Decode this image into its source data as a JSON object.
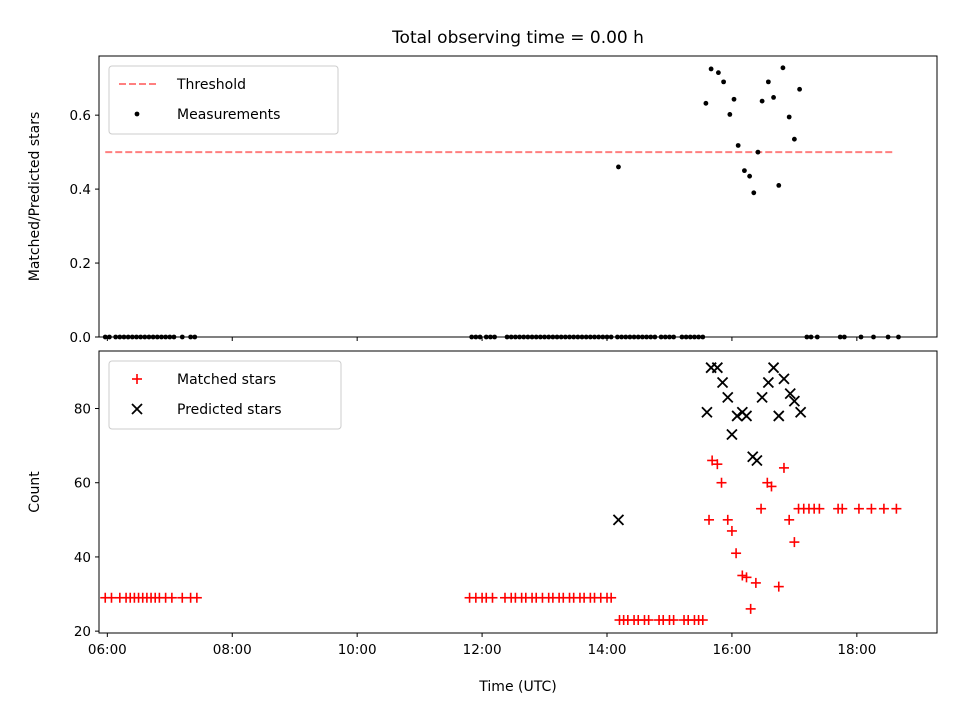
{
  "figure": {
    "title": "Total observing time = 0.00 h"
  },
  "chart_data": [
    {
      "type": "scatter",
      "panel": "top",
      "ylabel": "Matched/Predicted stars",
      "xlabel": "",
      "xlim": [
        "05:52",
        "19:17"
      ],
      "ylim": [
        0,
        0.76
      ],
      "yticks": [
        "0.0",
        "0.2",
        "0.4",
        "0.6"
      ],
      "legend_position": "top-left",
      "threshold": {
        "name": "Threshold",
        "y": 0.5,
        "x_range": [
          "05:58",
          "18:36"
        ],
        "color": "#ff7f7f"
      },
      "series": [
        {
          "name": "Measurements",
          "color": "#000000",
          "points": [
            [
              "05:58",
              0
            ],
            [
              "06:02",
              0
            ],
            [
              "06:08",
              0
            ],
            [
              "06:12",
              0
            ],
            [
              "06:16",
              0
            ],
            [
              "06:20",
              0
            ],
            [
              "06:24",
              0
            ],
            [
              "06:28",
              0
            ],
            [
              "06:32",
              0
            ],
            [
              "06:36",
              0
            ],
            [
              "06:40",
              0
            ],
            [
              "06:44",
              0
            ],
            [
              "06:48",
              0
            ],
            [
              "06:52",
              0
            ],
            [
              "06:56",
              0
            ],
            [
              "07:00",
              0
            ],
            [
              "07:04",
              0
            ],
            [
              "07:12",
              0
            ],
            [
              "07:20",
              0
            ],
            [
              "07:24",
              0
            ],
            [
              "11:50",
              0
            ],
            [
              "11:54",
              0
            ],
            [
              "11:58",
              0
            ],
            [
              "12:04",
              0
            ],
            [
              "12:08",
              0
            ],
            [
              "12:12",
              0
            ],
            [
              "12:24",
              0
            ],
            [
              "12:28",
              0
            ],
            [
              "12:32",
              0
            ],
            [
              "12:36",
              0
            ],
            [
              "12:40",
              0
            ],
            [
              "12:44",
              0
            ],
            [
              "12:48",
              0
            ],
            [
              "12:52",
              0
            ],
            [
              "12:56",
              0
            ],
            [
              "13:00",
              0
            ],
            [
              "13:04",
              0
            ],
            [
              "13:08",
              0
            ],
            [
              "13:12",
              0
            ],
            [
              "13:16",
              0
            ],
            [
              "13:20",
              0
            ],
            [
              "13:24",
              0
            ],
            [
              "13:28",
              0
            ],
            [
              "13:32",
              0
            ],
            [
              "13:36",
              0
            ],
            [
              "13:40",
              0
            ],
            [
              "13:44",
              0
            ],
            [
              "13:48",
              0
            ],
            [
              "13:52",
              0
            ],
            [
              "13:56",
              0
            ],
            [
              "14:00",
              0
            ],
            [
              "14:04",
              0
            ],
            [
              "14:10",
              0
            ],
            [
              "14:14",
              0
            ],
            [
              "14:18",
              0
            ],
            [
              "14:22",
              0
            ],
            [
              "14:26",
              0
            ],
            [
              "14:30",
              0
            ],
            [
              "14:34",
              0
            ],
            [
              "14:38",
              0
            ],
            [
              "14:42",
              0
            ],
            [
              "14:46",
              0
            ],
            [
              "14:52",
              0
            ],
            [
              "14:56",
              0
            ],
            [
              "15:00",
              0
            ],
            [
              "15:04",
              0
            ],
            [
              "15:12",
              0
            ],
            [
              "15:16",
              0
            ],
            [
              "15:20",
              0
            ],
            [
              "15:24",
              0
            ],
            [
              "15:28",
              0
            ],
            [
              "15:32",
              0
            ],
            [
              "17:12",
              0
            ],
            [
              "17:16",
              0
            ],
            [
              "17:22",
              0
            ],
            [
              "17:44",
              0
            ],
            [
              "17:48",
              0
            ],
            [
              "18:04",
              0
            ],
            [
              "18:16",
              0
            ],
            [
              "18:30",
              0
            ],
            [
              "18:40",
              0
            ],
            [
              "14:11",
              0.46
            ],
            [
              "15:35",
              0.632
            ],
            [
              "15:40",
              0.725
            ],
            [
              "15:47",
              0.715
            ],
            [
              "15:52",
              0.69
            ],
            [
              "15:58",
              0.602
            ],
            [
              "16:02",
              0.643
            ],
            [
              "16:06",
              0.518
            ],
            [
              "16:12",
              0.45
            ],
            [
              "16:17",
              0.435
            ],
            [
              "16:21",
              0.39
            ],
            [
              "16:25",
              0.5
            ],
            [
              "16:29",
              0.638
            ],
            [
              "16:35",
              0.69
            ],
            [
              "16:40",
              0.648
            ],
            [
              "16:45",
              0.41
            ],
            [
              "16:49",
              0.728
            ],
            [
              "16:55",
              0.595
            ],
            [
              "17:00",
              0.535
            ],
            [
              "17:05",
              0.67
            ]
          ]
        }
      ]
    },
    {
      "type": "scatter",
      "panel": "bottom",
      "ylabel": "Count",
      "xlabel": "Time (UTC)",
      "xlim": [
        "05:52",
        "19:17"
      ],
      "ylim": [
        19.5,
        95.5
      ],
      "yticks": [
        "20",
        "40",
        "60",
        "80"
      ],
      "xticks": [
        "06:00",
        "08:00",
        "10:00",
        "12:00",
        "14:00",
        "16:00",
        "18:00"
      ],
      "legend_position": "top-left",
      "series": [
        {
          "name": "Matched stars",
          "marker": "plus",
          "color": "#ff0000",
          "points": [
            [
              "05:58",
              29
            ],
            [
              "06:04",
              29
            ],
            [
              "06:12",
              29
            ],
            [
              "06:18",
              29
            ],
            [
              "06:22",
              29
            ],
            [
              "06:26",
              29
            ],
            [
              "06:30",
              29
            ],
            [
              "06:34",
              29
            ],
            [
              "06:38",
              29
            ],
            [
              "06:42",
              29
            ],
            [
              "06:46",
              29
            ],
            [
              "06:50",
              29
            ],
            [
              "06:56",
              29
            ],
            [
              "07:02",
              29
            ],
            [
              "07:12",
              29
            ],
            [
              "07:20",
              29
            ],
            [
              "07:26",
              29
            ],
            [
              "11:48",
              29
            ],
            [
              "11:54",
              29
            ],
            [
              "12:00",
              29
            ],
            [
              "12:04",
              29
            ],
            [
              "12:10",
              29
            ],
            [
              "12:22",
              29
            ],
            [
              "12:28",
              29
            ],
            [
              "12:32",
              29
            ],
            [
              "12:38",
              29
            ],
            [
              "12:42",
              29
            ],
            [
              "12:48",
              29
            ],
            [
              "12:52",
              29
            ],
            [
              "12:58",
              29
            ],
            [
              "13:04",
              29
            ],
            [
              "13:08",
              29
            ],
            [
              "13:14",
              29
            ],
            [
              "13:18",
              29
            ],
            [
              "13:24",
              29
            ],
            [
              "13:28",
              29
            ],
            [
              "13:34",
              29
            ],
            [
              "13:38",
              29
            ],
            [
              "13:44",
              29
            ],
            [
              "13:48",
              29
            ],
            [
              "13:54",
              29
            ],
            [
              "14:00",
              29
            ],
            [
              "14:04",
              29
            ],
            [
              "14:12",
              23
            ],
            [
              "14:16",
              23
            ],
            [
              "14:20",
              23
            ],
            [
              "14:26",
              23
            ],
            [
              "14:30",
              23
            ],
            [
              "14:36",
              23
            ],
            [
              "14:40",
              23
            ],
            [
              "14:50",
              23
            ],
            [
              "14:54",
              23
            ],
            [
              "15:00",
              23
            ],
            [
              "15:04",
              23
            ],
            [
              "15:14",
              23
            ],
            [
              "15:18",
              23
            ],
            [
              "15:24",
              23
            ],
            [
              "15:28",
              23
            ],
            [
              "15:32",
              23
            ],
            [
              "15:38",
              50
            ],
            [
              "15:41",
              66
            ],
            [
              "15:46",
              65
            ],
            [
              "15:50",
              60
            ],
            [
              "15:56",
              50
            ],
            [
              "16:00",
              47
            ],
            [
              "16:04",
              41
            ],
            [
              "16:10",
              35
            ],
            [
              "16:14",
              34.5
            ],
            [
              "16:18",
              26
            ],
            [
              "16:23",
              33
            ],
            [
              "16:28",
              53
            ],
            [
              "16:34",
              60
            ],
            [
              "16:38",
              59
            ],
            [
              "16:45",
              32
            ],
            [
              "16:50",
              64
            ],
            [
              "16:55",
              50
            ],
            [
              "17:00",
              44
            ],
            [
              "17:04",
              53
            ],
            [
              "17:09",
              53
            ],
            [
              "17:14",
              53
            ],
            [
              "17:19",
              53
            ],
            [
              "17:24",
              53
            ],
            [
              "17:42",
              53
            ],
            [
              "17:46",
              53
            ],
            [
              "18:02",
              53
            ],
            [
              "18:14",
              53
            ],
            [
              "18:26",
              53
            ],
            [
              "18:38",
              53
            ]
          ]
        },
        {
          "name": "Predicted stars",
          "marker": "x",
          "color": "#000000",
          "points": [
            [
              "14:11",
              50
            ],
            [
              "15:36",
              79
            ],
            [
              "15:40",
              91
            ],
            [
              "15:46",
              91
            ],
            [
              "15:51",
              87
            ],
            [
              "15:56",
              83
            ],
            [
              "16:00",
              73
            ],
            [
              "16:05",
              78
            ],
            [
              "16:10",
              79
            ],
            [
              "16:14",
              78
            ],
            [
              "16:20",
              67
            ],
            [
              "16:24",
              66
            ],
            [
              "16:29",
              83
            ],
            [
              "16:35",
              87
            ],
            [
              "16:40",
              91
            ],
            [
              "16:45",
              78
            ],
            [
              "16:50",
              88
            ],
            [
              "16:56",
              84
            ],
            [
              "17:00",
              82
            ],
            [
              "17:06",
              79
            ]
          ]
        }
      ]
    }
  ]
}
